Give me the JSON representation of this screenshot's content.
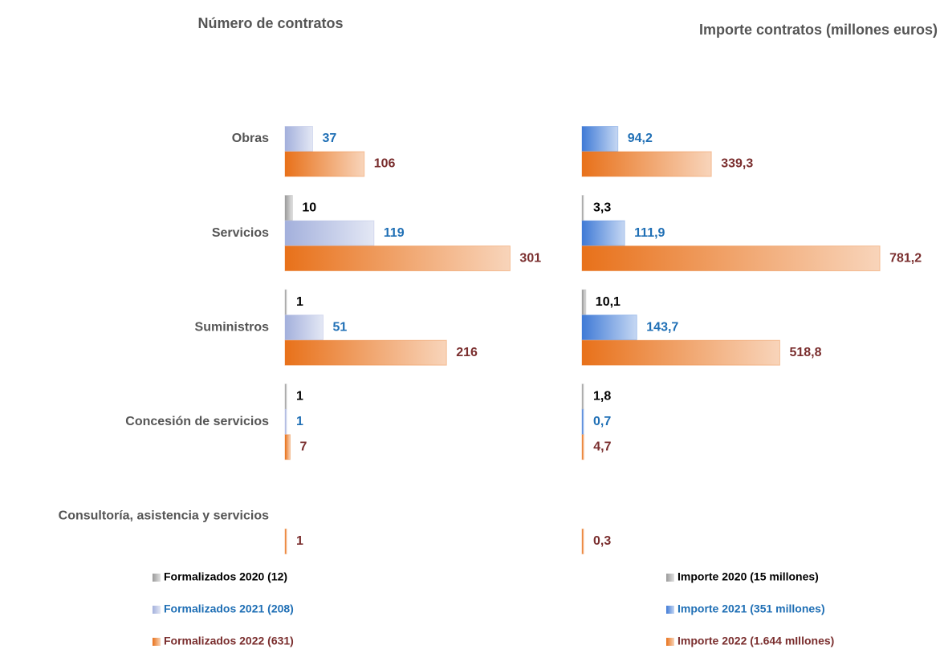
{
  "chart_data": [
    {
      "type": "bar",
      "orientation": "horizontal",
      "title": "Número de contratos",
      "categories": [
        "Obras",
        "Servicios",
        "Suministros",
        "Concesión de servicios",
        "Consultoría, asistencia y servicios"
      ],
      "xlim": [
        0,
        322
      ],
      "series": [
        {
          "name": "Formalizados 2020 (12)",
          "color": "#9a9a9a",
          "label_color": "#000000",
          "values": [
            null,
            10,
            1,
            1,
            null
          ]
        },
        {
          "name": "Formalizados 2021 (208)",
          "color": "#a3b0dc",
          "label_color": "#1f6fb5",
          "values": [
            37,
            119,
            51,
            1,
            null
          ]
        },
        {
          "name": "Formalizados 2022 (631)",
          "color": "#e8711a",
          "label_color": "#7a2e2e",
          "values": [
            106,
            301,
            216,
            7,
            1
          ]
        }
      ]
    },
    {
      "type": "bar",
      "orientation": "horizontal",
      "title": "Importe contratos (millones euros)",
      "xlim": [
        0,
        842
      ],
      "series": [
        {
          "name": "Importe 2020 (15 millones)",
          "color": "#9a9a9a",
          "label_color": "#000000",
          "values": [
            null,
            3.3,
            10.1,
            1.8,
            null
          ],
          "value_labels": [
            null,
            "3,3",
            "10,1",
            "1,8",
            null
          ]
        },
        {
          "name": "Importe 2021 (351 millones)",
          "color": "#3f7ad6",
          "label_color": "#1f6fb5",
          "values": [
            94.2,
            111.9,
            143.7,
            0.7,
            null
          ],
          "value_labels": [
            "94,2",
            "111,9",
            "143,7",
            "0,7",
            null
          ]
        },
        {
          "name": "Importe 2022 (1.644 mIllones)",
          "color": "#e8711a",
          "label_color": "#7a2e2e",
          "values": [
            339.3,
            781.2,
            518.8,
            4.7,
            0.3
          ],
          "value_labels": [
            "339,3",
            "781,2",
            "518,8",
            "4,7",
            "0,3"
          ]
        }
      ]
    }
  ]
}
